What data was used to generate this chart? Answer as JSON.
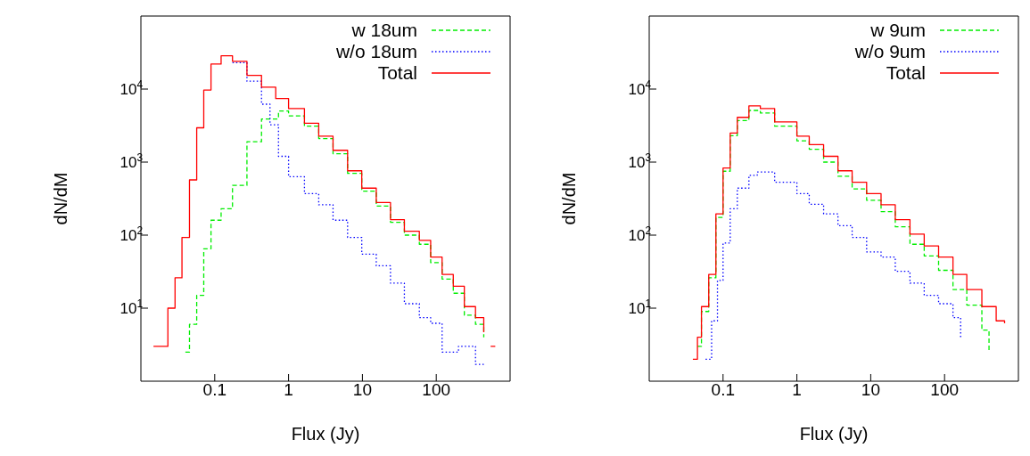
{
  "chart_data": [
    {
      "type": "step",
      "xlabel": "Flux (Jy)",
      "ylabel": "dN/dM",
      "log": "xy",
      "xlim": [
        0.01,
        1000
      ],
      "xticks": [
        0.1,
        1,
        10,
        100
      ],
      "ylim": [
        1,
        100000
      ],
      "yticks": [
        {
          "value": 10,
          "label": "10$^{1}$"
        },
        {
          "value": 100,
          "label": "10$^{2}$"
        },
        {
          "value": 1000,
          "label": "10$^{3}$"
        },
        {
          "value": 10000,
          "label": "10$^{4}$"
        }
      ],
      "grid": false,
      "legend": "top right",
      "series": [
        {
          "name": "w 18um",
          "color": "#00ee00",
          "line_style": "dashed",
          "x": [
            0.04,
            0.0455,
            0.057,
            0.071,
            0.089,
            0.122,
            0.174,
            0.273,
            0.43,
            0.73,
            1,
            1.64,
            2.56,
            4,
            6.3,
            9.8,
            15.4,
            24,
            37,
            59,
            84,
            120,
            170,
            240,
            340,
            440
          ],
          "values": [
            2.5,
            6,
            15,
            65,
            160,
            230,
            480,
            1900,
            3900,
            5000,
            4300,
            3100,
            2100,
            1300,
            700,
            400,
            250,
            150,
            100,
            75,
            42,
            25,
            16,
            8,
            6,
            4
          ]
        },
        {
          "name": "w/o 18um",
          "color": "#0000ff",
          "line_style": "dotted",
          "x": [
            0.174,
            0.273,
            0.43,
            0.56,
            0.73,
            1,
            1.64,
            2.56,
            4,
            6.3,
            9.8,
            15.4,
            24,
            37,
            59,
            84,
            120,
            200,
            340,
            450
          ],
          "values": [
            23000,
            12800,
            6200,
            3250,
            1200,
            630,
            370,
            260,
            160,
            93,
            55,
            38,
            22,
            11.5,
            7.4,
            6.2,
            2.5,
            3,
            1.7,
            1.7
          ]
        },
        {
          "name": "Total",
          "color": "#ff0000",
          "line_style": "solid",
          "x": [
            0.0148,
            0.0186,
            0.0232,
            0.029,
            0.036,
            0.0455,
            0.057,
            0.071,
            0.089,
            0.122,
            0.174,
            0.273,
            0.43,
            0.67,
            1,
            1.64,
            2.56,
            4,
            6.3,
            9.8,
            15.4,
            24,
            37,
            59,
            84,
            120,
            170,
            240,
            340,
            440,
            480,
            545,
            630
          ],
          "values": [
            3,
            3,
            10,
            26,
            93,
            570,
            2950,
            9700,
            22000,
            28500,
            24000,
            15400,
            10600,
            7400,
            5400,
            3400,
            2270,
            1450,
            760,
            440,
            280,
            163,
            113,
            85,
            50,
            29,
            20,
            10.5,
            7.4,
            4.7,
            null,
            3,
            3
          ]
        }
      ]
    },
    {
      "type": "step",
      "xlabel": "Flux (Jy)",
      "ylabel": "dN/dM",
      "log": "xy",
      "xlim": [
        0.01,
        1000
      ],
      "xticks": [
        0.1,
        1,
        10,
        100
      ],
      "ylim": [
        1,
        100000
      ],
      "yticks": [
        {
          "value": 10,
          "label": "10$^{1}$"
        },
        {
          "value": 100,
          "label": "10$^{2}$"
        },
        {
          "value": 1000,
          "label": "10$^{3}$"
        },
        {
          "value": 10000,
          "label": "10$^{4}$"
        }
      ],
      "grid": false,
      "legend": "top right",
      "series": [
        {
          "name": "w 9um",
          "color": "#00ee00",
          "line_style": "dashed",
          "x": [
            0.045,
            0.051,
            0.064,
            0.08,
            0.1,
            0.125,
            0.156,
            0.224,
            0.32,
            0.5,
            1,
            1.47,
            2.3,
            3.6,
            5.6,
            8.8,
            13.8,
            21.5,
            34,
            53,
            83,
            130,
            200,
            320,
            400
          ],
          "values": [
            3,
            9,
            26,
            175,
            750,
            2300,
            3700,
            5100,
            4700,
            3100,
            1950,
            1500,
            1000,
            640,
            430,
            300,
            210,
            130,
            75,
            52,
            33,
            18,
            11,
            5,
            2.5
          ]
        },
        {
          "name": "w/o 9um",
          "color": "#0000ff",
          "line_style": "dotted",
          "x": [
            0.058,
            0.07,
            0.084,
            0.1,
            0.125,
            0.156,
            0.224,
            0.29,
            0.5,
            1,
            1.47,
            2.3,
            3.6,
            5.6,
            8.8,
            13.8,
            21.5,
            34,
            53,
            83,
            130,
            165
          ],
          "values": [
            2,
            6.7,
            24,
            78,
            230,
            440,
            660,
            730,
            530,
            370,
            265,
            195,
            135,
            93,
            59,
            50,
            32,
            22,
            15,
            11.5,
            7.4,
            3.9
          ]
        },
        {
          "name": "Total",
          "color": "#ff0000",
          "line_style": "solid",
          "x": [
            0.039,
            0.045,
            0.051,
            0.064,
            0.08,
            0.1,
            0.125,
            0.156,
            0.224,
            0.32,
            0.5,
            1,
            1.47,
            2.3,
            3.6,
            5.6,
            8.8,
            13.8,
            21.5,
            34,
            53,
            83,
            130,
            200,
            320,
            500,
            650
          ],
          "values": [
            2,
            4,
            10.5,
            29,
            195,
            830,
            2500,
            4100,
            5900,
            5400,
            3550,
            2270,
            1740,
            1200,
            760,
            530,
            370,
            260,
            163,
            103,
            71,
            50,
            29,
            18,
            10.5,
            6.7,
            6.2
          ]
        }
      ]
    }
  ]
}
